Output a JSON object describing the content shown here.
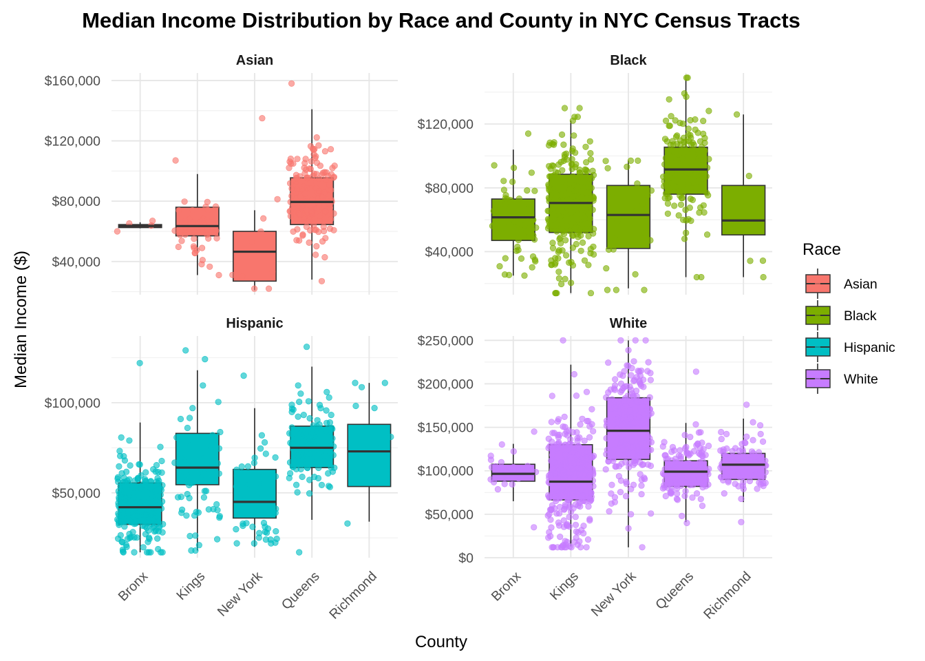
{
  "chart_data": {
    "type": "boxplot",
    "title": "Median Income Distribution by Race and County in NYC Census Tracts",
    "xlabel": "County",
    "ylabel": "Median Income ($)",
    "categories": [
      "Bronx",
      "Kings",
      "New York",
      "Queens",
      "Richmond"
    ],
    "legend": {
      "title": "Race",
      "placement": "right",
      "entries": [
        {
          "name": "Asian",
          "color": "#F8766D"
        },
        {
          "name": "Black",
          "color": "#7CAE00"
        },
        {
          "name": "Hispanic",
          "color": "#00BFC4"
        },
        {
          "name": "White",
          "color": "#C77CFF"
        }
      ]
    },
    "facets": [
      {
        "name": "Asian",
        "color": "#F8766D",
        "ylim": [
          18000,
          165000
        ],
        "yticks": [
          40000,
          80000,
          120000,
          160000
        ],
        "ytick_labels": [
          "$40,000",
          "$80,000",
          "$120,000",
          "$160,000"
        ],
        "show_x_labels": false,
        "boxes": [
          {
            "category": "Bronx",
            "q1": 62500,
            "median": 63500,
            "q3": 64500,
            "whisker_low": 62000,
            "whisker_high": 66000,
            "n": 4,
            "point_range": [
              60000,
              67000
            ]
          },
          {
            "category": "Kings",
            "q1": 57000,
            "median": 63500,
            "q3": 76000,
            "whisker_low": 31000,
            "whisker_high": 98000,
            "n": 45,
            "point_range": [
              31000,
              107000
            ]
          },
          {
            "category": "New York",
            "q1": 27000,
            "median": 46500,
            "q3": 60000,
            "whisker_low": 21000,
            "whisker_high": 74000,
            "n": 10,
            "point_range": [
              22000,
              135000
            ]
          },
          {
            "category": "Queens",
            "q1": 64500,
            "median": 79500,
            "q3": 95500,
            "whisker_low": 28000,
            "whisker_high": 141000,
            "n": 150,
            "point_range": [
              27000,
              158000
            ]
          }
        ]
      },
      {
        "name": "Black",
        "color": "#7CAE00",
        "ylim": [
          13000,
          152000
        ],
        "yticks": [
          40000,
          80000,
          120000
        ],
        "ytick_labels": [
          "$40,000",
          "$80,000",
          "$120,000"
        ],
        "show_x_labels": false,
        "boxes": [
          {
            "category": "Bronx",
            "q1": 47000,
            "median": 61500,
            "q3": 73000,
            "whisker_low": 25000,
            "whisker_high": 104000,
            "n": 60,
            "point_range": [
              25000,
              114000
            ]
          },
          {
            "category": "Kings",
            "q1": 52000,
            "median": 70500,
            "q3": 88500,
            "whisker_low": 14000,
            "whisker_high": 122000,
            "n": 250,
            "point_range": [
              14000,
              130000
            ]
          },
          {
            "category": "New York",
            "q1": 42000,
            "median": 63000,
            "q3": 81500,
            "whisker_low": 17000,
            "whisker_high": 97000,
            "n": 30,
            "point_range": [
              16000,
              97000
            ]
          },
          {
            "category": "Queens",
            "q1": 76000,
            "median": 91500,
            "q3": 105500,
            "whisker_low": 24000,
            "whisker_high": 148000,
            "n": 150,
            "point_range": [
              24000,
              149000
            ]
          },
          {
            "category": "Richmond",
            "q1": 50500,
            "median": 59500,
            "q3": 81500,
            "whisker_low": 24000,
            "whisker_high": 126000,
            "n": 5,
            "point_range": [
              24000,
              126000
            ]
          }
        ]
      },
      {
        "name": "Hispanic",
        "color": "#00BFC4",
        "ylim": [
          14000,
          137000
        ],
        "yticks": [
          50000,
          100000
        ],
        "ytick_labels": [
          "$50,000",
          "$100,000"
        ],
        "show_x_labels": true,
        "boxes": [
          {
            "category": "Bronx",
            "q1": 32500,
            "median": 42000,
            "q3": 55500,
            "whisker_low": 17000,
            "whisker_high": 89000,
            "n": 200,
            "point_range": [
              17000,
              122000
            ]
          },
          {
            "category": "Kings",
            "q1": 54500,
            "median": 64000,
            "q3": 83000,
            "whisker_low": 18000,
            "whisker_high": 118000,
            "n": 70,
            "point_range": [
              18000,
              129000
            ]
          },
          {
            "category": "New York",
            "q1": 36000,
            "median": 45000,
            "q3": 63000,
            "whisker_low": 20000,
            "whisker_high": 97000,
            "n": 50,
            "point_range": [
              22000,
              115000
            ]
          },
          {
            "category": "Queens",
            "q1": 64000,
            "median": 75000,
            "q3": 87000,
            "whisker_low": 35000,
            "whisker_high": 120000,
            "n": 120,
            "point_range": [
              17000,
              131000
            ]
          },
          {
            "category": "Richmond",
            "q1": 53500,
            "median": 73000,
            "q3": 88000,
            "whisker_low": 34000,
            "whisker_high": 111000,
            "n": 8,
            "point_range": [
              33000,
              111000
            ]
          }
        ]
      },
      {
        "name": "White",
        "color": "#C77CFF",
        "ylim": [
          0,
          255000
        ],
        "yticks": [
          0,
          50000,
          100000,
          150000,
          200000,
          250000
        ],
        "ytick_labels": [
          "$0",
          "$50,000",
          "$100,000",
          "$150,000",
          "$200,000",
          "$250,000"
        ],
        "show_x_labels": true,
        "boxes": [
          {
            "category": "Bronx",
            "q1": 88000,
            "median": 96500,
            "q3": 107500,
            "whisker_low": 65000,
            "whisker_high": 131000,
            "n": 30,
            "point_range": [
              35000,
              145000
            ]
          },
          {
            "category": "Kings",
            "q1": 66500,
            "median": 87500,
            "q3": 130000,
            "whisker_low": 13000,
            "whisker_high": 222000,
            "n": 300,
            "point_range": [
              12000,
              250000
            ]
          },
          {
            "category": "New York",
            "q1": 113000,
            "median": 146000,
            "q3": 184000,
            "whisker_low": 12000,
            "whisker_high": 250000,
            "n": 200,
            "point_range": [
              12000,
              250000
            ]
          },
          {
            "category": "Queens",
            "q1": 82000,
            "median": 99000,
            "q3": 111500,
            "whisker_low": 41000,
            "whisker_high": 155000,
            "n": 150,
            "point_range": [
              40000,
              214000
            ]
          },
          {
            "category": "Richmond",
            "q1": 90000,
            "median": 107000,
            "q3": 120000,
            "whisker_low": 64000,
            "whisker_high": 160000,
            "n": 100,
            "point_range": [
              41000,
              176000
            ]
          }
        ]
      }
    ]
  }
}
